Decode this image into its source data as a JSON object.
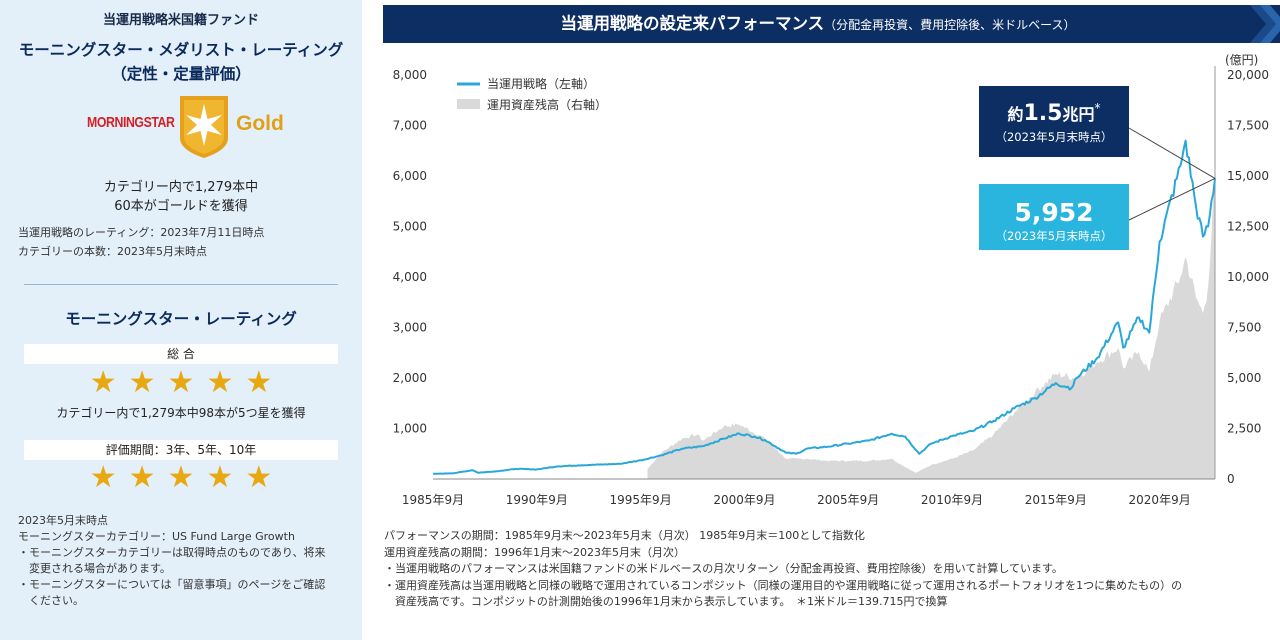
{
  "left_panel": {
    "fund_name": "当運用戦略米国籍ファンド",
    "medalist_title": "モーニングスター・メダリスト・レーティング",
    "medalist_subtitle": "（定性・定量評価）",
    "logo_text": "MORNINGSTAR",
    "medal_label": "Gold",
    "gold_count_line1": "カテゴリー内で1,279本中",
    "gold_count_line2": "60本がゴールドを獲得",
    "rating_date_note": "当運用戦略のレーティング：2023年7月11日時点",
    "category_count_note": "カテゴリーの本数：2023年5月末時点",
    "rating_title": "モーニングスター・レーティング",
    "overall_label": "総 合",
    "overall_stars": 5,
    "five_star_text": "カテゴリー内で1,279本中98本が5つ星を獲得",
    "period_label": "評価期間：3年、5年、10年",
    "period_stars": 5,
    "footnotes": [
      "2023年5月末時点",
      "モーニングスターカテゴリー：US Fund Large Growth",
      "・モーニングスターカテゴリーは取得時点のものであり、将来",
      "　変更される場合があります。",
      "・モーニングスターについては「留意事項」のページをご確認",
      "　ください。"
    ],
    "colors": {
      "panel_bg": "#e3eff9",
      "star": "#e8a811",
      "title": "#0b2a5c",
      "logo_red": "#d41f26",
      "medal_gold": "#e0a01a"
    }
  },
  "header": {
    "title": "当運用戦略の設定来パフォーマンス",
    "subtitle": "（分配金再投資、費用控除後、米ドルベース）",
    "bg_color": "#0d2e63"
  },
  "chart_data": {
    "type": "line",
    "title": "",
    "xlabel": "",
    "ylabel_left": "",
    "ylabel_right": "(億円)",
    "x_range": [
      "1985-09",
      "2023-05"
    ],
    "x_ticks": [
      "1985年9月",
      "1990年9月",
      "1995年9月",
      "2000年9月",
      "2005年9月",
      "2010年9月",
      "2015年9月",
      "2020年9月"
    ],
    "y_left": {
      "min": 0,
      "max": 8000,
      "ticks": [
        "",
        "1,000",
        "2,000",
        "3,000",
        "4,000",
        "5,000",
        "6,000",
        "7,000",
        "8,000"
      ]
    },
    "y_right": {
      "min": 0,
      "max": 20000,
      "ticks": [
        "0",
        "2,500",
        "5,000",
        "7,500",
        "10,000",
        "12,500",
        "15,000",
        "17,500",
        "20,000"
      ]
    },
    "legend_position": "top-left",
    "series": [
      {
        "name": "当運用戦略（左軸）",
        "axis": "left",
        "kind": "line",
        "color": "#29a8d8",
        "points": [
          [
            "1985-09",
            100
          ],
          [
            "1986-09",
            115
          ],
          [
            "1987-08",
            175
          ],
          [
            "1987-11",
            125
          ],
          [
            "1988-09",
            150
          ],
          [
            "1989-09",
            200
          ],
          [
            "1990-09",
            190
          ],
          [
            "1991-09",
            250
          ],
          [
            "1992-09",
            270
          ],
          [
            "1993-09",
            285
          ],
          [
            "1994-09",
            300
          ],
          [
            "1995-09",
            370
          ],
          [
            "1996-09",
            470
          ],
          [
            "1997-09",
            600
          ],
          [
            "1998-09",
            650
          ],
          [
            "1999-09",
            800
          ],
          [
            "2000-06",
            900
          ],
          [
            "2001-03",
            840
          ],
          [
            "2001-09",
            770
          ],
          [
            "2002-09",
            520
          ],
          [
            "2003-03",
            500
          ],
          [
            "2003-09",
            600
          ],
          [
            "2004-09",
            640
          ],
          [
            "2005-09",
            700
          ],
          [
            "2006-09",
            760
          ],
          [
            "2007-10",
            900
          ],
          [
            "2008-06",
            840
          ],
          [
            "2009-02",
            500
          ],
          [
            "2009-09",
            700
          ],
          [
            "2010-09",
            850
          ],
          [
            "2011-09",
            950
          ],
          [
            "2012-09",
            1150
          ],
          [
            "2013-09",
            1400
          ],
          [
            "2014-09",
            1600
          ],
          [
            "2015-09",
            1900
          ],
          [
            "2016-06",
            1800
          ],
          [
            "2016-09",
            2000
          ],
          [
            "2017-09",
            2400
          ],
          [
            "2018-09",
            3100
          ],
          [
            "2018-12",
            2600
          ],
          [
            "2019-09",
            3200
          ],
          [
            "2020-03",
            2900
          ],
          [
            "2020-09",
            4700
          ],
          [
            "2021-09",
            6200
          ],
          [
            "2021-12",
            6700
          ],
          [
            "2022-06",
            5400
          ],
          [
            "2022-10",
            4800
          ],
          [
            "2023-01",
            5000
          ],
          [
            "2023-05",
            5952
          ]
        ]
      },
      {
        "name": "運用資産残高（右軸）",
        "axis": "right",
        "kind": "area",
        "color": "#d9d9d9",
        "points": [
          [
            "1996-01",
            500
          ],
          [
            "1996-09",
            1300
          ],
          [
            "1997-09",
            2000
          ],
          [
            "1998-06",
            2200
          ],
          [
            "1998-09",
            1900
          ],
          [
            "1999-09",
            2600
          ],
          [
            "2000-06",
            2700
          ],
          [
            "2001-09",
            2000
          ],
          [
            "2002-09",
            1000
          ],
          [
            "2003-09",
            1000
          ],
          [
            "2004-09",
            900
          ],
          [
            "2005-09",
            900
          ],
          [
            "2006-09",
            900
          ],
          [
            "2007-10",
            1000
          ],
          [
            "2008-12",
            300
          ],
          [
            "2009-09",
            700
          ],
          [
            "2010-09",
            1000
          ],
          [
            "2011-09",
            1400
          ],
          [
            "2012-09",
            2200
          ],
          [
            "2013-09",
            3300
          ],
          [
            "2014-09",
            4300
          ],
          [
            "2015-09",
            5200
          ],
          [
            "2016-09",
            5000
          ],
          [
            "2017-09",
            5800
          ],
          [
            "2018-09",
            6500
          ],
          [
            "2018-12",
            5500
          ],
          [
            "2019-09",
            6300
          ],
          [
            "2020-03",
            5300
          ],
          [
            "2020-09",
            7800
          ],
          [
            "2021-09",
            10000
          ],
          [
            "2021-12",
            11000
          ],
          [
            "2022-06",
            9000
          ],
          [
            "2022-10",
            8200
          ],
          [
            "2023-01",
            9500
          ],
          [
            "2023-05",
            15000
          ]
        ]
      }
    ],
    "annotations": [
      {
        "id": "aum",
        "value": "約1.5兆円",
        "value_main": "1.5",
        "prefix": "約",
        "unit": "兆円",
        "mark": "*",
        "note": "（2023年5月末時点）",
        "bg": "#0d2e63"
      },
      {
        "id": "perf",
        "value": "5,952",
        "note": "（2023年5月末時点）",
        "bg": "#29b5de"
      }
    ]
  },
  "footnotes": [
    "パフォーマンスの期間：1985年9月末～2023年5月末（月次） 1985年9月末＝100として指数化",
    "運用資産残高の期間：1996年1月末～2023年5月末（月次）",
    "・当運用戦略のパフォーマンスは米国籍ファンドの米ドルベースの月次リターン（分配金再投資、費用控除後）を用いて計算しています。",
    "・運用資産残高は当運用戦略と同様の戦略で運用されているコンポジット（同様の運用目的や運用戦略に従って運用されるポートフォリオを1つに集めたもの）の",
    "　資産残高です。コンポジットの計測開始後の1996年1月末から表示しています。　＊1米ドル＝139.715円で換算"
  ]
}
